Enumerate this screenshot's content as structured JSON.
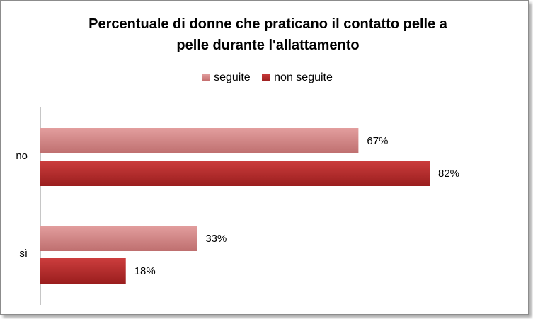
{
  "chart_data": {
    "type": "bar",
    "orientation": "horizontal",
    "title": "Percentuale di donne che praticano il contatto pelle a pelle durante l'allattamento",
    "title_lines": [
      "Percentuale di donne che praticano il contatto pelle a",
      "pelle durante l'allattamento"
    ],
    "categories": [
      "no",
      "sì"
    ],
    "series": [
      {
        "name": "seguite",
        "values": [
          67,
          33
        ],
        "labels": [
          "67%",
          "33%"
        ],
        "color": "#d68686"
      },
      {
        "name": "non seguite",
        "values": [
          82,
          18
        ],
        "labels": [
          "82%",
          "18%"
        ],
        "color": "#b52a2a"
      }
    ],
    "unit": "%",
    "xlim": [
      0,
      100
    ],
    "legend_position": "top",
    "grid": false
  }
}
